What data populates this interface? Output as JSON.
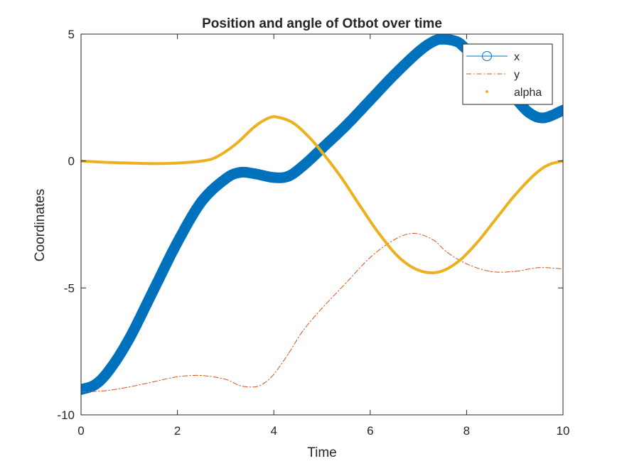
{
  "chart_data": {
    "type": "line",
    "title": "Position and angle of Otbot over time",
    "xlabel": "Time",
    "ylabel": "Coordinates",
    "xlim": [
      0,
      10
    ],
    "ylim": [
      -10,
      5
    ],
    "xticks": [
      0,
      2,
      4,
      6,
      8,
      10
    ],
    "yticks": [
      -10,
      -5,
      0,
      5
    ],
    "xtick_labels": [
      "0",
      "2",
      "4",
      "6",
      "8",
      "10"
    ],
    "ytick_labels": [
      "-10",
      "-5",
      "0",
      "5"
    ],
    "grid": false,
    "legend_position": "top-right",
    "series": [
      {
        "name": "x",
        "color": "#0072BD",
        "style": "thick line with circle markers",
        "x": [
          0,
          0.3,
          0.6,
          1,
          1.5,
          2,
          2.5,
          3,
          3.3,
          3.6,
          4,
          4.3,
          4.6,
          5,
          5.5,
          6,
          6.5,
          7,
          7.3,
          7.5,
          7.8,
          8,
          8.5,
          9,
          9.3,
          9.6,
          10
        ],
        "values": [
          -9,
          -8.8,
          -8.2,
          -7,
          -5.1,
          -3.2,
          -1.6,
          -0.7,
          -0.45,
          -0.5,
          -0.65,
          -0.6,
          -0.2,
          0.5,
          1.4,
          2.4,
          3.4,
          4.3,
          4.7,
          4.8,
          4.7,
          4.4,
          3.6,
          2.5,
          1.9,
          1.7,
          2
        ]
      },
      {
        "name": "y",
        "color": "#D95319",
        "style": "thin dash-dot line",
        "x": [
          0,
          0.5,
          1,
          1.5,
          2,
          2.5,
          3,
          3.3,
          3.6,
          3.8,
          4,
          4.3,
          4.6,
          5,
          5.5,
          6,
          6.5,
          6.9,
          7.3,
          7.6,
          8,
          8.5,
          9,
          9.5,
          10
        ],
        "values": [
          -9.1,
          -9.05,
          -8.9,
          -8.7,
          -8.5,
          -8.45,
          -8.6,
          -8.85,
          -8.9,
          -8.75,
          -8.4,
          -7.6,
          -6.7,
          -5.8,
          -4.8,
          -3.8,
          -3.1,
          -2.85,
          -3.1,
          -3.6,
          -4.05,
          -4.35,
          -4.35,
          -4.2,
          -4.25
        ]
      },
      {
        "name": "alpha",
        "color": "#EDB120",
        "style": "point markers",
        "x": [
          0,
          0.5,
          1,
          1.5,
          2,
          2.5,
          2.8,
          3.2,
          3.6,
          3.9,
          4.1,
          4.4,
          4.7,
          5,
          5.4,
          5.8,
          6.2,
          6.6,
          7,
          7.4,
          7.8,
          8.2,
          8.6,
          9,
          9.4,
          9.7,
          10
        ],
        "values": [
          0,
          -0.05,
          -0.08,
          -0.1,
          -0.08,
          0,
          0.15,
          0.65,
          1.35,
          1.7,
          1.72,
          1.5,
          1.0,
          0.35,
          -0.65,
          -1.8,
          -2.9,
          -3.8,
          -4.3,
          -4.38,
          -4.0,
          -3.25,
          -2.3,
          -1.35,
          -0.55,
          -0.15,
          0
        ]
      }
    ]
  }
}
